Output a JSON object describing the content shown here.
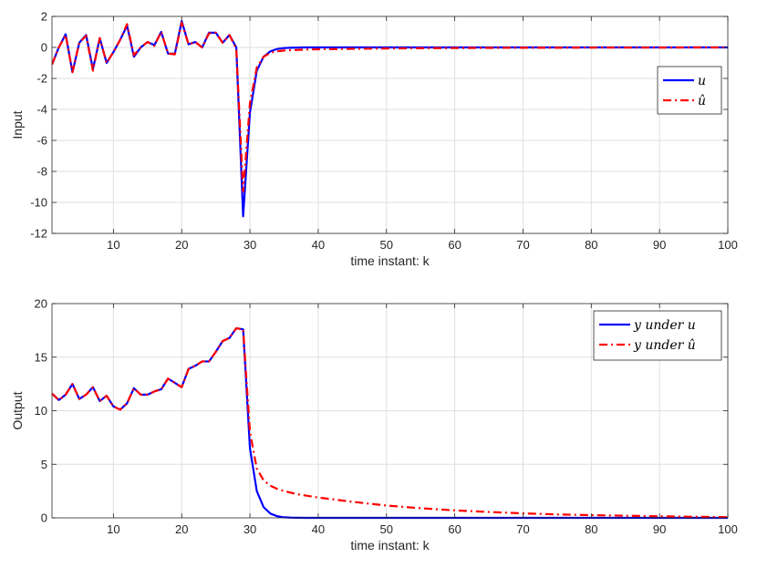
{
  "chart_data": [
    {
      "type": "line",
      "xlabel": "time instant: k",
      "ylabel": "Input",
      "xlim": [
        1,
        100
      ],
      "ylim": [
        -12,
        2
      ],
      "xticks": [
        10,
        20,
        30,
        40,
        50,
        60,
        70,
        80,
        90,
        100
      ],
      "yticks": [
        -12,
        -10,
        -8,
        -6,
        -4,
        -2,
        0,
        2
      ],
      "grid": true,
      "legend": "right",
      "legend_labels": [
        "u",
        "û"
      ],
      "series": [
        {
          "name": "u",
          "color": "#0000ff",
          "style": "solid",
          "x": [
            1,
            2,
            3,
            4,
            5,
            6,
            7,
            8,
            9,
            10,
            11,
            12,
            13,
            14,
            15,
            16,
            17,
            18,
            19,
            20,
            21,
            22,
            23,
            24,
            25,
            26,
            27,
            28,
            29,
            30,
            31,
            32,
            33,
            34,
            35,
            36,
            37,
            38,
            39,
            40,
            45,
            50,
            55,
            60,
            65,
            70,
            75,
            80,
            85,
            90,
            95,
            100
          ],
          "y": [
            -1.1,
            0.0,
            0.85,
            -1.6,
            0.3,
            0.8,
            -1.4,
            0.6,
            -1.0,
            -0.3,
            0.5,
            1.4,
            -0.6,
            0.0,
            0.35,
            0.15,
            1.0,
            -0.4,
            -0.4,
            1.7,
            0.2,
            0.35,
            0.0,
            0.95,
            0.95,
            0.3,
            0.8,
            0.0,
            -10.9,
            -4.2,
            -1.5,
            -0.6,
            -0.25,
            -0.1,
            -0.04,
            -0.02,
            -0.01,
            0.0,
            0.0,
            0.0,
            0.0,
            0.0,
            0.0,
            0.0,
            0.0,
            0.0,
            0.0,
            0.0,
            0.0,
            0.0,
            0.0,
            0.0
          ]
        },
        {
          "name": "û",
          "color": "#ff0000",
          "style": "dashdot",
          "x": [
            1,
            2,
            3,
            4,
            5,
            6,
            7,
            8,
            9,
            10,
            11,
            12,
            13,
            14,
            15,
            16,
            17,
            18,
            19,
            20,
            21,
            22,
            23,
            24,
            25,
            26,
            27,
            28,
            29,
            30,
            31,
            32,
            33,
            34,
            35,
            36,
            37,
            38,
            39,
            40,
            45,
            50,
            55,
            60,
            65,
            70,
            75,
            80,
            85,
            90,
            95,
            100
          ],
          "y": [
            -1.1,
            0.0,
            0.8,
            -1.6,
            0.3,
            0.75,
            -1.5,
            0.6,
            -1.0,
            -0.3,
            0.5,
            1.5,
            -0.5,
            0.0,
            0.35,
            0.1,
            1.0,
            -0.4,
            -0.45,
            1.6,
            0.2,
            0.35,
            0.0,
            0.9,
            0.95,
            0.3,
            0.8,
            -0.1,
            -9.3,
            -3.6,
            -1.3,
            -0.6,
            -0.35,
            -0.25,
            -0.2,
            -0.18,
            -0.16,
            -0.14,
            -0.13,
            -0.12,
            -0.09,
            -0.07,
            -0.05,
            -0.04,
            -0.03,
            -0.02,
            -0.02,
            -0.01,
            -0.01,
            -0.01,
            0.0,
            0.0
          ]
        }
      ]
    },
    {
      "type": "line",
      "xlabel": "time instant: k",
      "ylabel": "Output",
      "xlim": [
        1,
        100
      ],
      "ylim": [
        0,
        20
      ],
      "xticks": [
        10,
        20,
        30,
        40,
        50,
        60,
        70,
        80,
        90,
        100
      ],
      "yticks": [
        0,
        5,
        10,
        15,
        20
      ],
      "grid": true,
      "legend": "top-right",
      "legend_labels": [
        "y under u",
        "y under û"
      ],
      "series": [
        {
          "name": "y under u",
          "color": "#0000ff",
          "style": "solid",
          "x": [
            1,
            2,
            3,
            4,
            5,
            6,
            7,
            8,
            9,
            10,
            11,
            12,
            13,
            14,
            15,
            16,
            17,
            18,
            19,
            20,
            21,
            22,
            23,
            24,
            25,
            26,
            27,
            28,
            29,
            30,
            31,
            32,
            33,
            34,
            35,
            36,
            37,
            38,
            40,
            45,
            50,
            55,
            60,
            65,
            70,
            75,
            80,
            85,
            90,
            95,
            100
          ],
          "y": [
            11.6,
            11.0,
            11.5,
            12.5,
            11.1,
            11.5,
            12.2,
            10.9,
            11.4,
            10.4,
            10.1,
            10.7,
            12.1,
            11.5,
            11.5,
            11.8,
            12.0,
            13.0,
            12.6,
            12.2,
            13.9,
            14.2,
            14.6,
            14.6,
            15.5,
            16.5,
            16.8,
            17.7,
            17.6,
            6.5,
            2.5,
            1.0,
            0.4,
            0.15,
            0.05,
            0.02,
            0.01,
            0.0,
            0.0,
            0.0,
            0.0,
            0.0,
            0.0,
            0.0,
            0.0,
            0.0,
            0.0,
            0.0,
            0.0,
            0.0,
            0.0
          ]
        },
        {
          "name": "y under û",
          "color": "#ff0000",
          "style": "dashdot",
          "x": [
            1,
            2,
            3,
            4,
            5,
            6,
            7,
            8,
            9,
            10,
            11,
            12,
            13,
            14,
            15,
            16,
            17,
            18,
            19,
            20,
            21,
            22,
            23,
            24,
            25,
            26,
            27,
            28,
            29,
            30,
            31,
            32,
            33,
            34,
            35,
            36,
            37,
            38,
            40,
            45,
            50,
            55,
            60,
            65,
            70,
            75,
            80,
            85,
            90,
            95,
            100
          ],
          "y": [
            11.6,
            11.0,
            11.5,
            12.5,
            11.1,
            11.5,
            12.2,
            10.9,
            11.4,
            10.4,
            10.1,
            10.7,
            12.1,
            11.5,
            11.5,
            11.8,
            12.0,
            13.0,
            12.6,
            12.2,
            13.9,
            14.2,
            14.6,
            14.6,
            15.5,
            16.5,
            16.8,
            17.7,
            17.6,
            8.0,
            4.6,
            3.5,
            3.0,
            2.7,
            2.5,
            2.35,
            2.2,
            2.1,
            1.9,
            1.5,
            1.15,
            0.9,
            0.7,
            0.55,
            0.42,
            0.32,
            0.25,
            0.2,
            0.15,
            0.1,
            0.07
          ]
        }
      ]
    }
  ]
}
